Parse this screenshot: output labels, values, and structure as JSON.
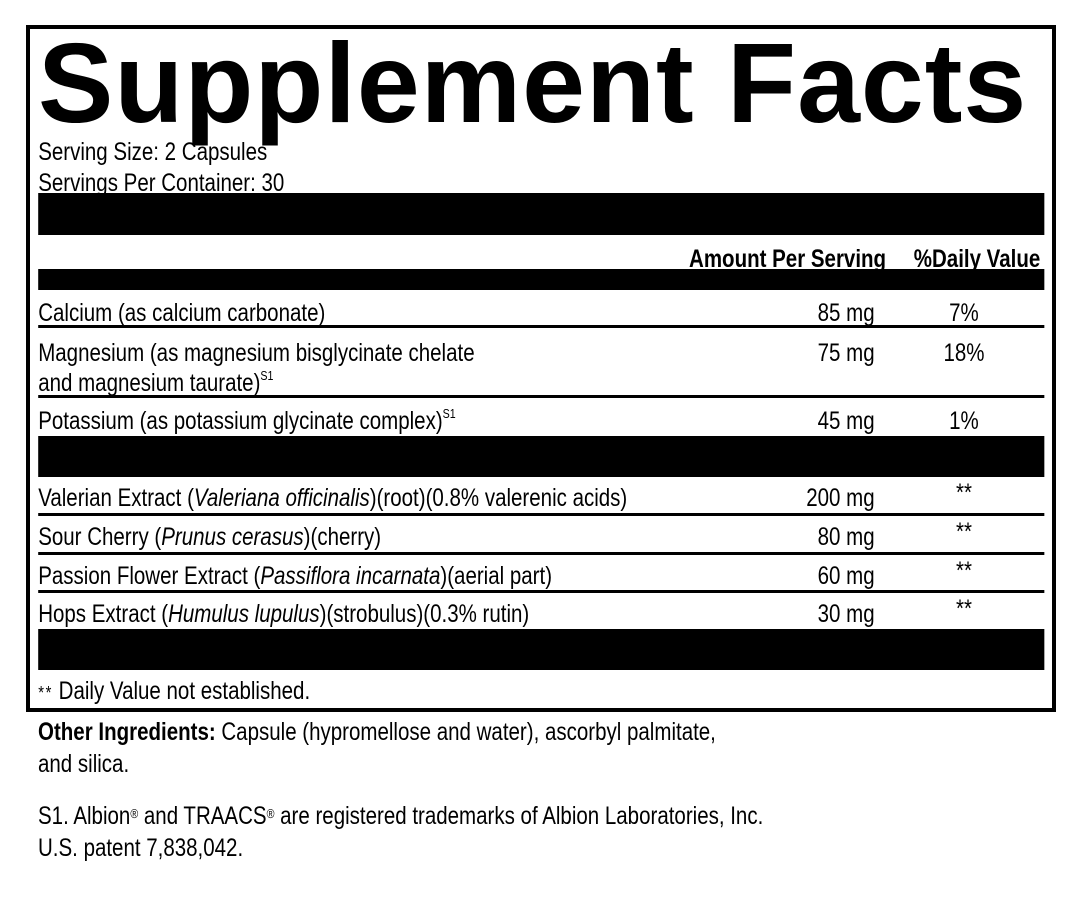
{
  "title": "Supplement Facts",
  "serving_size": "Serving Size: 2 Capsules",
  "servings_per_container": "Servings Per Container: 30",
  "header": {
    "amount": "Amount Per Serving",
    "daily_value": "%Daily Value"
  },
  "minerals": [
    {
      "name": "Calcium (as calcium carbonate)",
      "amount": "85 mg",
      "dv": "7%"
    },
    {
      "name_line1": "Magnesium (as magnesium bisglycinate chelate",
      "name_line2": "and magnesium taurate)",
      "sup": "S1",
      "amount": "75 mg",
      "dv": "18%"
    },
    {
      "name": "Potassium (as potassium glycinate complex)",
      "sup": "S1",
      "amount": "45 mg",
      "dv": "1%"
    }
  ],
  "botanicals": [
    {
      "pre": "Valerian Extract (",
      "latin": "Valeriana officinalis",
      "post": ")(root)(0.8% valerenic acids)",
      "amount": "200 mg",
      "dv": "**"
    },
    {
      "pre": "Sour Cherry (",
      "latin": "Prunus cerasus",
      "post": ")(cherry)",
      "amount": "80 mg",
      "dv": "**"
    },
    {
      "pre": "Passion Flower Extract (",
      "latin": "Passiflora incarnata",
      "post": ")(aerial part)",
      "amount": "60 mg",
      "dv": "**"
    },
    {
      "pre": "Hops Extract (",
      "latin": "Humulus lupulus",
      "post": ")(strobulus)(0.3% rutin)",
      "amount": "30 mg",
      "dv": "**"
    }
  ],
  "footnote": {
    "mark": "**",
    "text": " Daily Value not established."
  },
  "other_ingredients": {
    "label": "Other Ingredients:",
    "line1": " Capsule (hypromellose and water), ascorbyl palmitate,",
    "line2": "and silica."
  },
  "trademark": {
    "line1_a": "S1. Albion",
    "reg": "®",
    "line1_b": " and TRAACS",
    "line1_c": " are registered trademarks of Albion Laboratories, Inc.",
    "line2": "U.S. patent 7,838,042."
  }
}
